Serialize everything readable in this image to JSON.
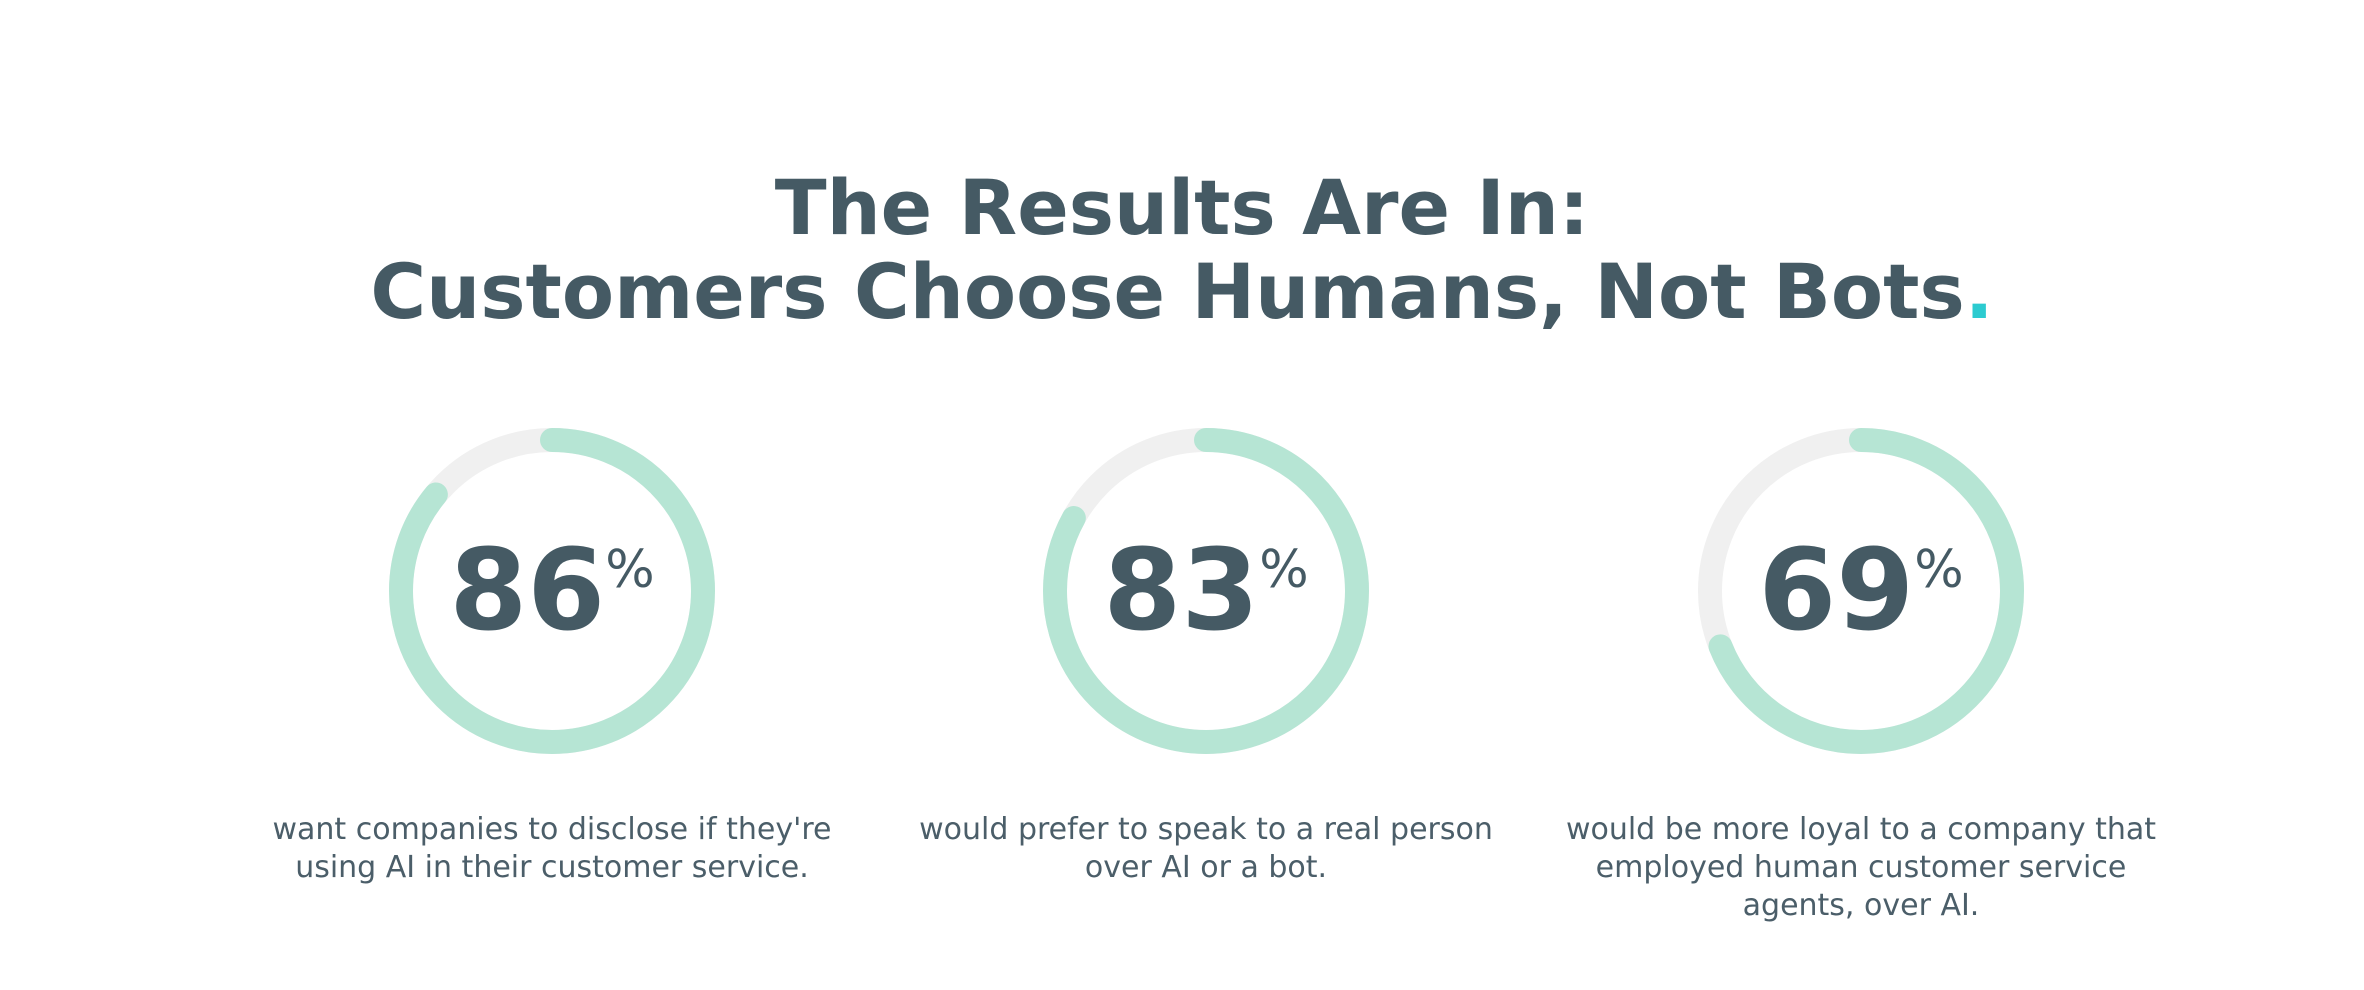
{
  "chart_data": {
    "type": "gauge",
    "title": [
      "The Results Are In:",
      "Customers Choose Humans, Not Bots"
    ],
    "title_accent": ".",
    "values": [
      86,
      83,
      69
    ],
    "unit": "%",
    "vlim": [
      0,
      100
    ],
    "color": "#b6e5d4",
    "track_color": "#f0f0f0",
    "captions": [
      [
        "want companies to disclose if they're",
        "using AI in their customer service."
      ],
      [
        "would prefer to speak to a real person",
        "over AI or a bot."
      ],
      [
        "would be more loyal to a company that",
        "employed human customer service",
        "agents, over AI."
      ]
    ]
  }
}
